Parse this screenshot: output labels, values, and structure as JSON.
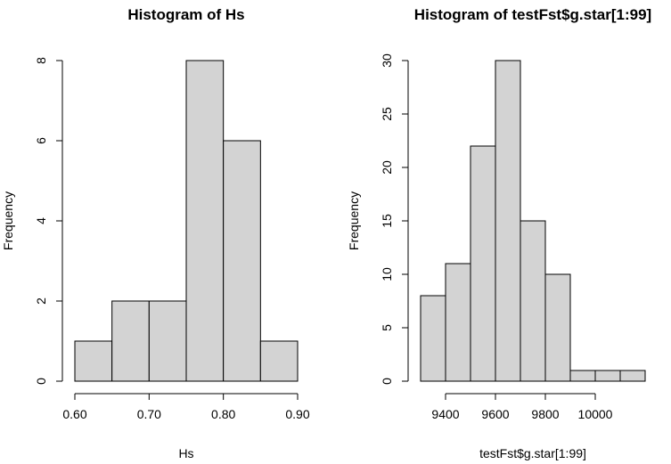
{
  "chart_data": [
    {
      "type": "bar",
      "title": "Histogram of Hs",
      "xlabel": "Hs",
      "ylabel": "Frequency",
      "bins": [
        [
          0.6,
          0.65
        ],
        [
          0.65,
          0.7
        ],
        [
          0.7,
          0.75
        ],
        [
          0.75,
          0.8
        ],
        [
          0.8,
          0.85
        ],
        [
          0.85,
          0.9
        ]
      ],
      "values": [
        1,
        2,
        2,
        8,
        6,
        1
      ],
      "xlim": [
        0.6,
        0.9
      ],
      "ylim": [
        0,
        8
      ],
      "xticks": [
        0.6,
        0.7,
        0.8,
        0.9
      ],
      "xtick_labels": [
        "0.60",
        "0.70",
        "0.80",
        "0.90"
      ],
      "yticks": [
        0,
        2,
        4,
        6,
        8
      ],
      "ytick_labels": [
        "0",
        "2",
        "4",
        "6",
        "8"
      ],
      "grid": false
    },
    {
      "type": "bar",
      "title": "Histogram of testFst$g.star[1:99]",
      "xlabel": "testFst$g.star[1:99]",
      "ylabel": "Frequency",
      "bins": [
        [
          9300,
          9400
        ],
        [
          9400,
          9500
        ],
        [
          9500,
          9600
        ],
        [
          9600,
          9700
        ],
        [
          9700,
          9800
        ],
        [
          9800,
          9900
        ],
        [
          9900,
          10000
        ],
        [
          10000,
          10100
        ],
        [
          10100,
          10200
        ]
      ],
      "values": [
        8,
        11,
        22,
        30,
        15,
        10,
        1,
        1,
        1
      ],
      "xlim": [
        9300,
        10200
      ],
      "ylim": [
        0,
        30
      ],
      "xticks": [
        9400,
        9600,
        9800,
        10000
      ],
      "xtick_labels": [
        "9400",
        "9600",
        "9800",
        "10000"
      ],
      "yticks": [
        0,
        5,
        10,
        15,
        20,
        25,
        30
      ],
      "ytick_labels": [
        "0",
        "5",
        "10",
        "15",
        "20",
        "25",
        "30"
      ],
      "grid": false
    }
  ]
}
